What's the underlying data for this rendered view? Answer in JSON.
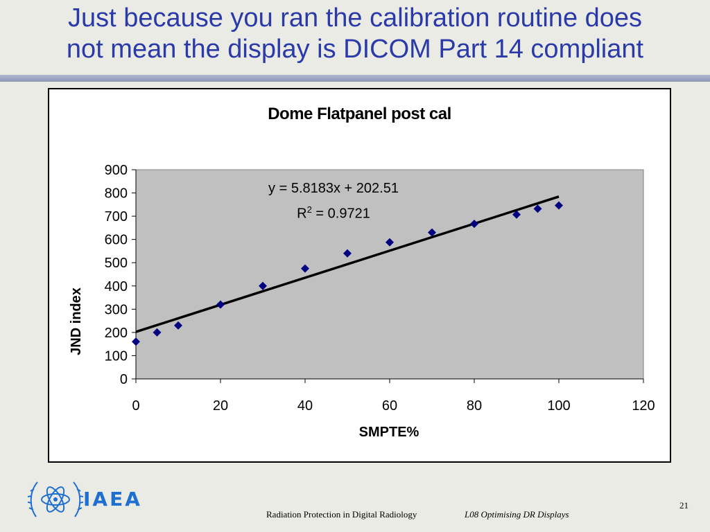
{
  "slide": {
    "title_line1": "Just because you ran the calibration routine does",
    "title_line2": "not mean the display is DICOM Part 14 compliant"
  },
  "chart_data": {
    "type": "scatter",
    "title": "Dome Flatpanel post cal",
    "xlabel": "SMPTE%",
    "ylabel": "JND index",
    "xlim": [
      0,
      120
    ],
    "ylim": [
      0,
      900
    ],
    "x_ticks": [
      0,
      20,
      40,
      60,
      80,
      100,
      120
    ],
    "y_ticks": [
      0,
      100,
      200,
      300,
      400,
      500,
      600,
      700,
      800,
      900
    ],
    "x": [
      0,
      5,
      10,
      20,
      30,
      40,
      50,
      60,
      70,
      80,
      90,
      95,
      100
    ],
    "y": [
      160,
      200,
      230,
      320,
      400,
      475,
      540,
      588,
      630,
      667,
      707,
      732,
      746
    ],
    "trendline": {
      "slope": 5.8183,
      "intercept": 202.51,
      "x_range": [
        0,
        100
      ]
    },
    "equation_text": "y = 5.8183x + 202.51",
    "r2_prefix": "R",
    "r2_sup": "2",
    "r2_suffix": " = 0.9721",
    "plot_background": "#c0c0c0",
    "marker_color": "#000080",
    "grid": false,
    "legend": "none"
  },
  "footer": {
    "logo_text": "IAEA",
    "page_number": "21",
    "left_text": "Radiation Protection in Digital Radiology",
    "right_text": "L08 Optimising DR Displays"
  },
  "colors": {
    "title": "#2a3aa8",
    "logo": "#1f6fd0"
  }
}
